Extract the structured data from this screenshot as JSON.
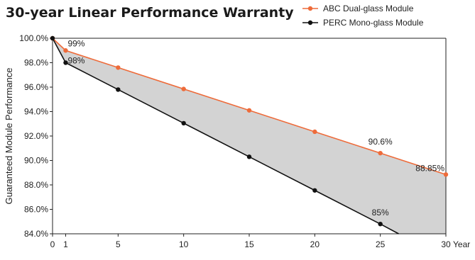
{
  "chart_data": {
    "type": "line",
    "title": "30-year Linear Performance Warranty",
    "ylabel": "Guaranteed Module Performance",
    "xlabel": "Year",
    "xlim": [
      0,
      30
    ],
    "ylim": [
      84,
      100
    ],
    "xticks": [
      {
        "value": 0,
        "label": "0"
      },
      {
        "value": 1,
        "label": "1"
      },
      {
        "value": 5,
        "label": "5"
      },
      {
        "value": 10,
        "label": "10"
      },
      {
        "value": 15,
        "label": "15"
      },
      {
        "value": 20,
        "label": "20"
      },
      {
        "value": 25,
        "label": "25"
      },
      {
        "value": 30,
        "label": "30"
      }
    ],
    "yticks": [
      {
        "value": 100,
        "label": "100.0%"
      },
      {
        "value": 98,
        "label": "98.0%"
      },
      {
        "value": 96,
        "label": "96.0%"
      },
      {
        "value": 94,
        "label": "94.0%"
      },
      {
        "value": 92,
        "label": "92.0%"
      },
      {
        "value": 90,
        "label": "90.0%"
      },
      {
        "value": 88,
        "label": "88.0%"
      },
      {
        "value": 86,
        "label": "86.0%"
      },
      {
        "value": 84,
        "label": "84.0%"
      }
    ],
    "grid": false,
    "legend_position": "top-right",
    "fill_between_series": true,
    "fill_color": "#d3d3d3",
    "series": [
      {
        "name": "ABC Dual-glass Module",
        "color": "#ee6b3a",
        "x": [
          0,
          1,
          5,
          10,
          15,
          20,
          25,
          30
        ],
        "y": [
          100,
          99,
          97.6,
          95.85,
          94.1,
          92.35,
          90.6,
          88.85
        ]
      },
      {
        "name": "PERC Mono-glass Module",
        "color": "#111111",
        "x": [
          0,
          1,
          5,
          10,
          15,
          20,
          25,
          26.4
        ],
        "y": [
          100,
          98,
          95.8,
          93.05,
          90.3,
          87.55,
          84.8,
          84.0
        ],
        "marker_count": 7
      }
    ],
    "annotations": [
      {
        "series": 0,
        "point": 1,
        "text": "99%"
      },
      {
        "series": 1,
        "point": 1,
        "text": "98%"
      },
      {
        "series": 0,
        "point": 6,
        "text": "90.6%"
      },
      {
        "series": 0,
        "point": 7,
        "text": "88.85%"
      },
      {
        "series": 1,
        "point": 6,
        "text": "85%"
      }
    ]
  }
}
